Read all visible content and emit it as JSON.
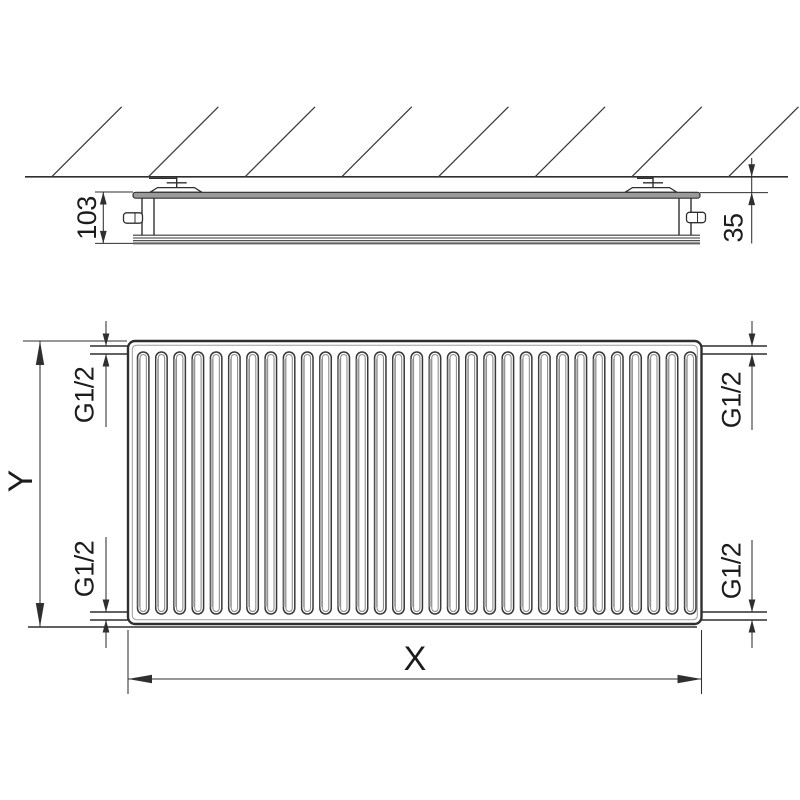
{
  "drawing": {
    "type": "radiator-technical-dimension-drawing",
    "views": {
      "side": {
        "depth_label": "103",
        "wall_distance_label": "35"
      },
      "front": {
        "height_label": "Y",
        "width_label": "X",
        "connections": {
          "top_left": "G1/2",
          "top_right": "G1/2",
          "bottom_left": "G1/2",
          "bottom_right": "G1/2"
        },
        "fin_count": 31
      }
    },
    "hatch_line_count": 8,
    "colors": {
      "line": "#2f2f2f",
      "panel_fill": "#9a9a9a",
      "fin_shade": "#b9b9b9",
      "background": "#ffffff"
    }
  }
}
